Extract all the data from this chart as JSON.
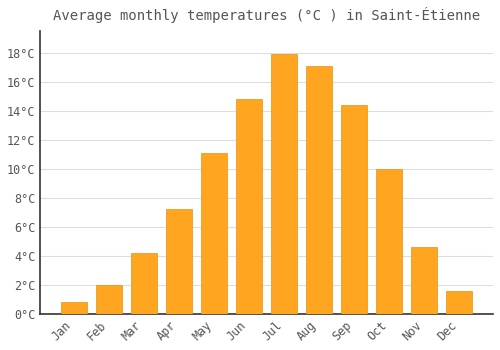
{
  "months": [
    "Jan",
    "Feb",
    "Mar",
    "Apr",
    "May",
    "Jun",
    "Jul",
    "Aug",
    "Sep",
    "Oct",
    "Nov",
    "Dec"
  ],
  "temperatures": [
    0.8,
    2.0,
    4.2,
    7.2,
    11.1,
    14.8,
    17.9,
    17.1,
    14.4,
    10.0,
    4.6,
    1.6
  ],
  "bar_color": "#FFA520",
  "bar_edge_color": "#E8940A",
  "title": "Average monthly temperatures (°C ) in Saint-Étienne",
  "title_fontsize": 10,
  "ylabel_ticks": [
    "0°C",
    "2°C",
    "4°C",
    "6°C",
    "8°C",
    "10°C",
    "12°C",
    "14°C",
    "16°C",
    "18°C"
  ],
  "ytick_values": [
    0,
    2,
    4,
    6,
    8,
    10,
    12,
    14,
    16,
    18
  ],
  "ylim": [
    0,
    19.5
  ],
  "background_color": "#ffffff",
  "grid_color": "#dddddd",
  "font_color": "#555555",
  "tick_label_fontsize": 8.5,
  "bar_width": 0.75
}
